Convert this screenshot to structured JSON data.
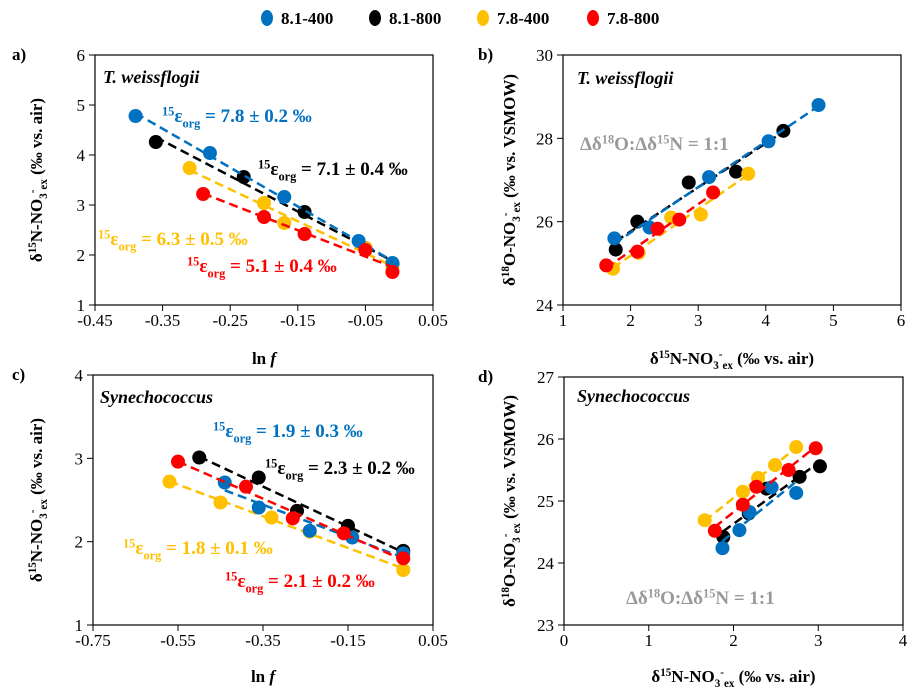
{
  "colors": {
    "8.1-400": "#0070C0",
    "8.1-800": "#000000",
    "7.8-400": "#FFC000",
    "7.8-800": "#FF0000",
    "one_to_one": "#808080"
  },
  "legend": {
    "placement": "top-center",
    "items": [
      {
        "label": "8.1-400",
        "color": "#0070C0"
      },
      {
        "label": "8.1-800",
        "color": "#000000"
      },
      {
        "label": "7.8-400",
        "color": "#FFC000"
      },
      {
        "label": "7.8-800",
        "color": "#FF0000"
      }
    ]
  },
  "chart_data": [
    {
      "panel": "a)",
      "type": "scatter",
      "species": "T. weissflogii",
      "xlabel": [
        [
          "ln ",
          ""
        ],
        [
          "f",
          "i"
        ]
      ],
      "ylabel": [
        [
          "δ",
          ""
        ],
        [
          "15",
          "sup"
        ],
        [
          "N-NO",
          ""
        ],
        [
          "3",
          "sub"
        ],
        [
          "-",
          "sup"
        ],
        [
          "ex",
          "sub"
        ],
        [
          " (‰ vs. air)",
          ""
        ]
      ],
      "xlim": [
        -0.45,
        0.05
      ],
      "xticks": [
        "-0.45",
        "-0.35",
        "-0.25",
        "-0.15",
        "-0.05",
        "0.05"
      ],
      "ylim": [
        1,
        6
      ],
      "yticks": [
        "1",
        "2",
        "3",
        "4",
        "5",
        "6"
      ],
      "fit_lines": true,
      "one_to_one": false,
      "series": [
        {
          "name": "8.1-400",
          "x": [
            -0.39,
            -0.28,
            -0.17,
            -0.06,
            -0.01
          ],
          "y": [
            4.78,
            4.04,
            3.16,
            2.28,
            1.84
          ]
        },
        {
          "name": "8.1-800",
          "x": [
            -0.36,
            -0.23,
            -0.14,
            -0.05,
            -0.01
          ],
          "y": [
            4.26,
            3.56,
            2.86,
            2.14,
            1.82
          ]
        },
        {
          "name": "7.8-400",
          "x": [
            -0.31,
            -0.2,
            -0.17,
            -0.05,
            -0.01
          ],
          "y": [
            3.74,
            3.04,
            2.64,
            2.14,
            1.75
          ]
        },
        {
          "name": "7.8-800",
          "x": [
            -0.29,
            -0.2,
            -0.14,
            -0.05,
            -0.01
          ],
          "y": [
            3.22,
            2.76,
            2.42,
            2.1,
            1.66
          ]
        }
      ],
      "annotations": [
        {
          "color": "#0070C0",
          "sup": "15",
          "sym": "ε",
          "sub": "org",
          "text": " = 7.8 ± 0.2 ‰"
        },
        {
          "color": "#000000",
          "sup": "15",
          "sym": "ε",
          "sub": "org",
          "text": " = 7.1 ± 0.4 ‰"
        },
        {
          "color": "#FFC000",
          "sup": "15",
          "sym": "ε",
          "sub": "org",
          "text": " = 6.3 ± 0.5 ‰"
        },
        {
          "color": "#FF0000",
          "sup": "15",
          "sym": "ε",
          "sub": "org",
          "text": " = 5.1 ± 0.4 ‰"
        }
      ]
    },
    {
      "panel": "b)",
      "type": "scatter",
      "species": "T. weissflogii",
      "xlabel": [
        [
          "δ",
          ""
        ],
        [
          "15",
          "sup"
        ],
        [
          "N-NO",
          ""
        ],
        [
          "3",
          "sub"
        ],
        [
          "-",
          "sup"
        ],
        [
          "ex",
          "sub"
        ],
        [
          " (‰ vs. air)",
          ""
        ]
      ],
      "ylabel": [
        [
          "δ",
          ""
        ],
        [
          "18",
          "sup"
        ],
        [
          "O-NO",
          ""
        ],
        [
          "3",
          "sub"
        ],
        [
          "-",
          "sup"
        ],
        [
          "ex",
          "sub"
        ],
        [
          " (‰ vs. VSMOW)",
          ""
        ]
      ],
      "xlim": [
        1,
        6
      ],
      "xticks": [
        "1",
        "2",
        "3",
        "4",
        "5",
        "6"
      ],
      "ylim": [
        24,
        30
      ],
      "yticks": [
        "24",
        "26",
        "28",
        "30"
      ],
      "fit_lines": true,
      "one_to_one": true,
      "series": [
        {
          "name": "8.1-400",
          "x": [
            4.78,
            4.04,
            3.16,
            2.28,
            1.76
          ],
          "y": [
            28.8,
            27.93,
            27.07,
            25.86,
            25.6
          ]
        },
        {
          "name": "8.1-800",
          "x": [
            4.26,
            3.56,
            2.86,
            2.1,
            1.78
          ],
          "y": [
            28.18,
            27.2,
            26.94,
            26.0,
            25.33
          ]
        },
        {
          "name": "7.8-400",
          "x": [
            3.74,
            3.04,
            2.6,
            2.12,
            1.74
          ],
          "y": [
            27.15,
            26.17,
            26.1,
            25.25,
            24.87
          ]
        },
        {
          "name": "7.8-800",
          "x": [
            3.22,
            2.72,
            2.4,
            2.1,
            1.64
          ],
          "y": [
            26.7,
            26.05,
            25.83,
            25.28,
            24.95
          ]
        }
      ],
      "annotations": [
        {
          "color": "#999999",
          "text_parts": [
            [
              "Δδ",
              ""
            ],
            [
              "18",
              "sup"
            ],
            [
              "O:Δδ",
              ""
            ],
            [
              "15",
              "sup"
            ],
            [
              "N = 1:1",
              ""
            ]
          ]
        }
      ]
    },
    {
      "panel": "c)",
      "type": "scatter",
      "species": "Synechococcus",
      "xlabel": [
        [
          "ln ",
          ""
        ],
        [
          "f",
          "i"
        ]
      ],
      "ylabel": [
        [
          "δ",
          ""
        ],
        [
          "15",
          "sup"
        ],
        [
          "N-NO",
          ""
        ],
        [
          "3",
          "sub"
        ],
        [
          "-",
          "sup"
        ],
        [
          "ex",
          "sub"
        ],
        [
          " (‰ vs. air)",
          ""
        ]
      ],
      "xlim": [
        -0.75,
        0.05
      ],
      "xticks": [
        "-0.75",
        "-0.55",
        "-0.35",
        "-0.15",
        "0.05"
      ],
      "ylim": [
        1,
        4
      ],
      "yticks": [
        "1",
        "2",
        "3",
        "4"
      ],
      "fit_lines": true,
      "one_to_one": false,
      "series": [
        {
          "name": "8.1-400",
          "x": [
            -0.44,
            -0.36,
            -0.24,
            -0.14,
            -0.02
          ],
          "y": [
            2.71,
            2.41,
            2.13,
            2.05,
            1.86
          ]
        },
        {
          "name": "8.1-800",
          "x": [
            -0.5,
            -0.36,
            -0.27,
            -0.15,
            -0.02
          ],
          "y": [
            3.01,
            2.77,
            2.37,
            2.19,
            1.89
          ]
        },
        {
          "name": "7.8-400",
          "x": [
            -0.57,
            -0.45,
            -0.33,
            -0.24,
            -0.02
          ],
          "y": [
            2.72,
            2.47,
            2.29,
            2.12,
            1.66
          ]
        },
        {
          "name": "7.8-800",
          "x": [
            -0.55,
            -0.39,
            -0.28,
            -0.16,
            -0.02
          ],
          "y": [
            2.96,
            2.66,
            2.28,
            2.1,
            1.8
          ]
        }
      ],
      "annotations": [
        {
          "color": "#0070C0",
          "sup": "15",
          "sym": "ε",
          "sub": "org",
          "text": " = 1.9 ± 0.3 ‰"
        },
        {
          "color": "#000000",
          "sup": "15",
          "sym": "ε",
          "sub": "org",
          "text": " = 2.3 ± 0.2 ‰"
        },
        {
          "color": "#FFC000",
          "sup": "15",
          "sym": "ε",
          "sub": "org",
          "text": " = 1.8 ± 0.1 ‰"
        },
        {
          "color": "#FF0000",
          "sup": "15",
          "sym": "ε",
          "sub": "org",
          "text": " = 2.1 ± 0.2 ‰"
        }
      ]
    },
    {
      "panel": "d)",
      "type": "scatter",
      "species": "Synechococcus",
      "xlabel": [
        [
          "δ",
          ""
        ],
        [
          "15",
          "sup"
        ],
        [
          "N-NO",
          ""
        ],
        [
          "3",
          "sub"
        ],
        [
          "-",
          "sup"
        ],
        [
          "ex",
          "sub"
        ],
        [
          " (‰ vs. air)",
          ""
        ]
      ],
      "ylabel": [
        [
          "δ",
          ""
        ],
        [
          "18",
          "sup"
        ],
        [
          "O-NO",
          ""
        ],
        [
          "3",
          "sub"
        ],
        [
          "-",
          "sup"
        ],
        [
          "ex",
          "sub"
        ],
        [
          " (‰ vs. VSMOW)",
          ""
        ]
      ],
      "xlim": [
        0,
        4
      ],
      "xticks": [
        "0",
        "1",
        "2",
        "3",
        "4"
      ],
      "ylim": [
        23,
        27
      ],
      "yticks": [
        "23",
        "24",
        "25",
        "26",
        "27"
      ],
      "fit_lines": true,
      "one_to_one": true,
      "series": [
        {
          "name": "8.1-400",
          "x": [
            1.87,
            2.07,
            2.19,
            2.45,
            2.74
          ],
          "y": [
            24.24,
            24.53,
            24.82,
            25.22,
            25.13
          ]
        },
        {
          "name": "8.1-800",
          "x": [
            1.88,
            2.18,
            2.39,
            2.78,
            3.02
          ],
          "y": [
            24.42,
            24.8,
            25.2,
            25.39,
            25.56
          ]
        },
        {
          "name": "7.8-400",
          "x": [
            1.66,
            2.11,
            2.29,
            2.49,
            2.74
          ],
          "y": [
            24.69,
            25.15,
            25.37,
            25.58,
            25.87
          ]
        },
        {
          "name": "7.8-800",
          "x": [
            1.78,
            2.11,
            2.27,
            2.65,
            2.97
          ],
          "y": [
            24.52,
            24.94,
            25.23,
            25.5,
            25.85
          ]
        }
      ],
      "annotations": [
        {
          "color": "#999999",
          "text_parts": [
            [
              "Δδ",
              ""
            ],
            [
              "18",
              "sup"
            ],
            [
              "O:Δδ",
              ""
            ],
            [
              "15",
              "sup"
            ],
            [
              "N = 1:1",
              ""
            ]
          ]
        }
      ]
    }
  ]
}
